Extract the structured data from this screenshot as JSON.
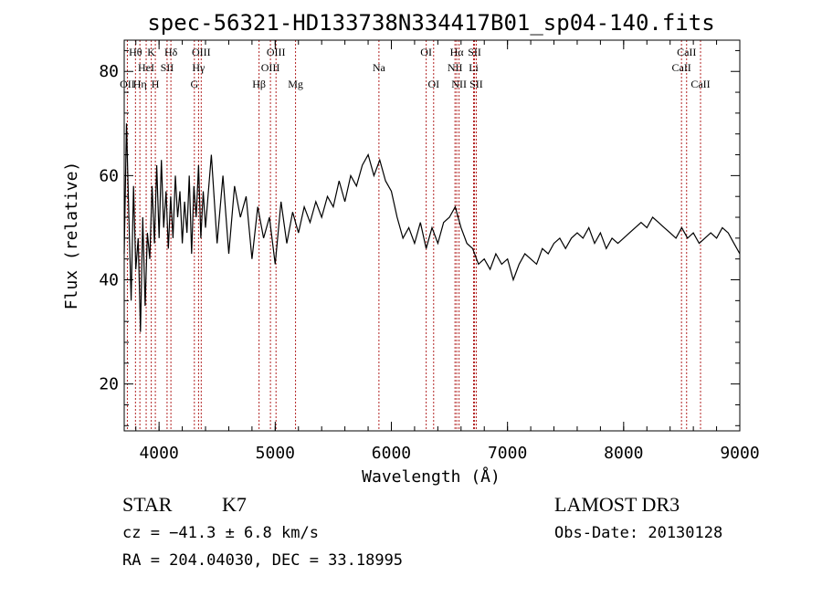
{
  "chart_data": {
    "type": "line",
    "title": "spec-56321-HD133738N334417B01_sp04-140.fits",
    "xlabel": "Wavelength (Å)",
    "ylabel": "Flux (relative)",
    "xlim": [
      3700,
      9000
    ],
    "ylim": [
      11,
      86
    ],
    "xticks": [
      4000,
      5000,
      6000,
      7000,
      8000,
      9000
    ],
    "yticks": [
      20,
      40,
      60,
      80
    ],
    "grid": false,
    "series": [
      {
        "x": [
          3700,
          3720,
          3740,
          3760,
          3780,
          3800,
          3820,
          3840,
          3860,
          3880,
          3900,
          3920,
          3940,
          3960,
          3980,
          4000,
          4020,
          4040,
          4060,
          4080,
          4100,
          4120,
          4140,
          4160,
          4180,
          4200,
          4220,
          4240,
          4260,
          4280,
          4300,
          4320,
          4340,
          4360,
          4380,
          4400,
          4450,
          4500,
          4550,
          4600,
          4650,
          4700,
          4750,
          4800,
          4850,
          4900,
          4950,
          5000,
          5050,
          5100,
          5150,
          5200,
          5250,
          5300,
          5350,
          5400,
          5450,
          5500,
          5550,
          5600,
          5650,
          5700,
          5750,
          5800,
          5850,
          5900,
          5950,
          6000,
          6050,
          6100,
          6150,
          6200,
          6250,
          6300,
          6350,
          6400,
          6450,
          6500,
          6550,
          6600,
          6650,
          6700,
          6750,
          6800,
          6850,
          6900,
          6950,
          7000,
          7050,
          7100,
          7150,
          7200,
          7250,
          7300,
          7350,
          7400,
          7450,
          7500,
          7550,
          7600,
          7650,
          7700,
          7750,
          7800,
          7850,
          7900,
          7950,
          8000,
          8050,
          8100,
          8150,
          8200,
          8250,
          8300,
          8350,
          8400,
          8450,
          8500,
          8550,
          8600,
          8650,
          8700,
          8750,
          8800,
          8850,
          8900,
          8950,
          9000
        ],
        "y": [
          45,
          70,
          52,
          36,
          58,
          42,
          48,
          30,
          52,
          35,
          49,
          44,
          58,
          47,
          62,
          48,
          63,
          50,
          57,
          46,
          56,
          48,
          60,
          52,
          57,
          47,
          55,
          49,
          60,
          45,
          58,
          52,
          62,
          48,
          57,
          50,
          64,
          47,
          60,
          45,
          58,
          52,
          56,
          44,
          54,
          48,
          52,
          43,
          55,
          47,
          53,
          49,
          54,
          51,
          55,
          52,
          56,
          54,
          59,
          55,
          60,
          58,
          62,
          64,
          60,
          63,
          59,
          57,
          52,
          48,
          50,
          47,
          51,
          46,
          50,
          47,
          51,
          52,
          54,
          50,
          47,
          46,
          43,
          44,
          42,
          45,
          43,
          44,
          40,
          43,
          45,
          44,
          43,
          46,
          45,
          47,
          48,
          46,
          48,
          49,
          48,
          50,
          47,
          49,
          46,
          48,
          47,
          48,
          49,
          50,
          51,
          50,
          52,
          51,
          50,
          49,
          48,
          50,
          48,
          49,
          47,
          48,
          49,
          48,
          50,
          49,
          47,
          45
        ]
      }
    ],
    "line_markers": [
      {
        "label": "Hθ",
        "wl": 3797,
        "row": 1
      },
      {
        "label": "OII",
        "wl": 3727,
        "row": 3
      },
      {
        "label": "Hη",
        "wl": 3835,
        "row": 3
      },
      {
        "label": "HeI",
        "wl": 3889,
        "row": 2
      },
      {
        "label": "K",
        "wl": 3933,
        "row": 1
      },
      {
        "label": "SII",
        "wl": 4069,
        "row": 2
      },
      {
        "label": "H",
        "wl": 3968,
        "row": 3
      },
      {
        "label": "Hδ",
        "wl": 4102,
        "row": 1
      },
      {
        "label": "OIII",
        "wl": 4363,
        "row": 1
      },
      {
        "label": "Hγ",
        "wl": 4340,
        "row": 2
      },
      {
        "label": "G",
        "wl": 4304,
        "row": 3
      },
      {
        "label": "OIII",
        "wl": 5007,
        "row": 1
      },
      {
        "label": "OIII",
        "wl": 4959,
        "row": 2
      },
      {
        "label": "Hβ",
        "wl": 4861,
        "row": 3
      },
      {
        "label": "Mg",
        "wl": 5175,
        "row": 3
      },
      {
        "label": "Na",
        "wl": 5893,
        "row": 2
      },
      {
        "label": "OI",
        "wl": 6300,
        "row": 1
      },
      {
        "label": "OI",
        "wl": 6364,
        "row": 3
      },
      {
        "label": "Hα",
        "wl": 6563,
        "row": 1
      },
      {
        "label": "SII",
        "wl": 6716,
        "row": 1
      },
      {
        "label": "NII",
        "wl": 6548,
        "row": 2
      },
      {
        "label": "Li",
        "wl": 6708,
        "row": 2
      },
      {
        "label": "NII",
        "wl": 6583,
        "row": 3
      },
      {
        "label": "SII",
        "wl": 6731,
        "row": 3
      },
      {
        "label": "CaII",
        "wl": 8542,
        "row": 1
      },
      {
        "label": "CaII",
        "wl": 8498,
        "row": 2
      },
      {
        "label": "CaII",
        "wl": 8662,
        "row": 3
      }
    ]
  },
  "info": {
    "object_class": "STAR",
    "subclass": "K7",
    "cz": "cz = −41.3 ± 6.8 km/s",
    "radec": "RA = 204.04030, DEC =  33.18995",
    "survey": "LAMOST DR3",
    "obs_date": "Obs-Date: 20130128"
  },
  "colors": {
    "spectrum": "#000000",
    "marker": "#b22222"
  }
}
